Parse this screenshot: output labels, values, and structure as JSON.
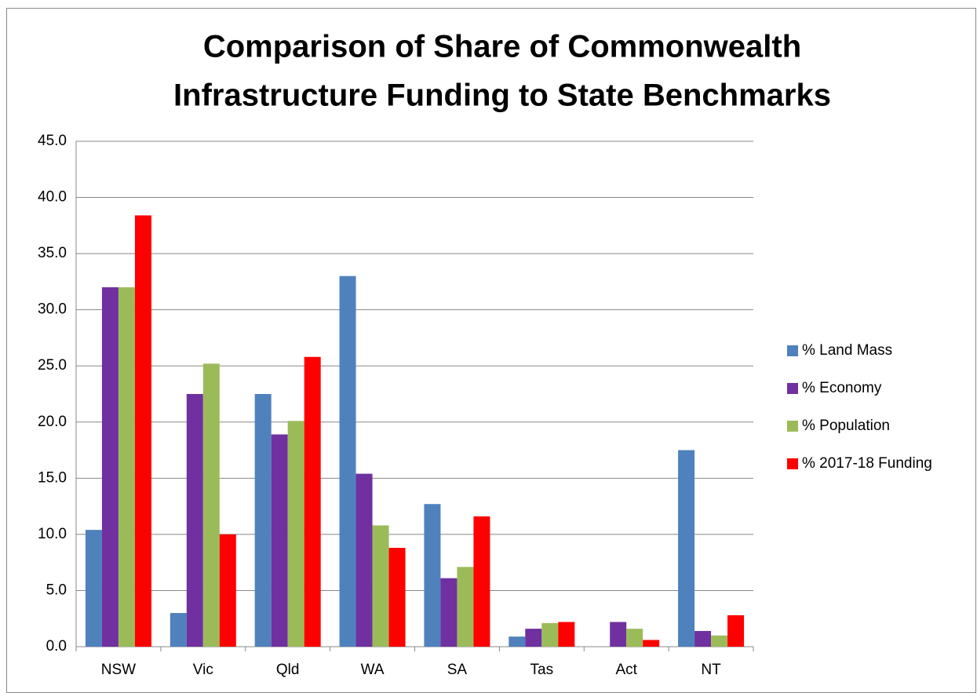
{
  "chart_data": {
    "type": "bar",
    "title": [
      "Comparison of Share of Commonwealth",
      "Infrastructure Funding to State Benchmarks"
    ],
    "categories": [
      "NSW",
      "Vic",
      "Qld",
      "WA",
      "SA",
      "Tas",
      "Act",
      "NT"
    ],
    "series": [
      {
        "name": "% Land Mass",
        "color": "#4f81bd",
        "values": [
          10.4,
          3.0,
          22.5,
          33.0,
          12.7,
          0.9,
          0.0,
          17.5
        ]
      },
      {
        "name": "% Economy",
        "color": "#7030a0",
        "values": [
          32.0,
          22.5,
          18.9,
          15.4,
          6.1,
          1.6,
          2.2,
          1.4
        ]
      },
      {
        "name": "% Population",
        "color": "#9bbb59",
        "values": [
          32.0,
          25.2,
          20.1,
          10.8,
          7.1,
          2.1,
          1.6,
          1.0
        ]
      },
      {
        "name": "% 2017-18 Funding",
        "color": "#ff0000",
        "values": [
          38.4,
          10.0,
          25.8,
          8.8,
          11.6,
          2.2,
          0.6,
          2.8
        ]
      }
    ],
    "ylim": [
      0,
      45
    ],
    "yticks": [
      {
        "value": 0,
        "label": "0.0"
      },
      {
        "value": 5,
        "label": "5.0"
      },
      {
        "value": 10,
        "label": "10.0"
      },
      {
        "value": 15,
        "label": "15.0"
      },
      {
        "value": 20,
        "label": "20.0"
      },
      {
        "value": 25,
        "label": "25.0"
      },
      {
        "value": 30,
        "label": "30.0"
      },
      {
        "value": 35,
        "label": "35.0"
      },
      {
        "value": 40,
        "label": "40.0"
      },
      {
        "value": 45,
        "label": "45.0"
      }
    ],
    "grid": true,
    "legend": "right"
  }
}
